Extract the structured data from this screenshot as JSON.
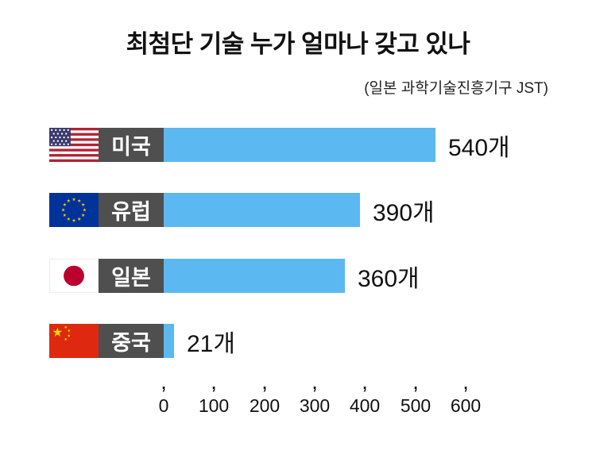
{
  "title": "최첨단 기술 누가 얼마나 갖고 있나",
  "source_note": "(일본 과학기술진흥기구 JST)",
  "chart_data": {
    "type": "bar",
    "orientation": "horizontal",
    "title": "최첨단 기술 누가 얼마나 갖고 있나",
    "source": "(일본 과학기술진흥기구 JST)",
    "categories": [
      "미국",
      "유럽",
      "일본",
      "중국"
    ],
    "values": [
      540,
      390,
      360,
      21
    ],
    "unit": "개",
    "value_labels": [
      "540개",
      "390개",
      "360개",
      "21개"
    ],
    "xlim": [
      0,
      600
    ],
    "x_ticks": [
      0,
      100,
      200,
      300,
      400,
      500,
      600
    ],
    "grid": false,
    "legend": false,
    "bar_color": "#5CB8F0"
  },
  "rows": [
    {
      "flag": "us-flag",
      "label": "미국",
      "value_label": "540개"
    },
    {
      "flag": "eu-flag",
      "label": "유럽",
      "value_label": "390개"
    },
    {
      "flag": "japan-flag",
      "label": "일본",
      "value_label": "360개"
    },
    {
      "flag": "china-flag",
      "label": "중국",
      "value_label": "21개"
    }
  ],
  "axis": {
    "tick_glyph": ",",
    "tick_labels": [
      "0",
      "100",
      "200",
      "300",
      "400",
      "500",
      "600"
    ]
  },
  "colors": {
    "bar": "#5CB8F0",
    "label_box": "#4F4F4F",
    "text": "#111111"
  }
}
